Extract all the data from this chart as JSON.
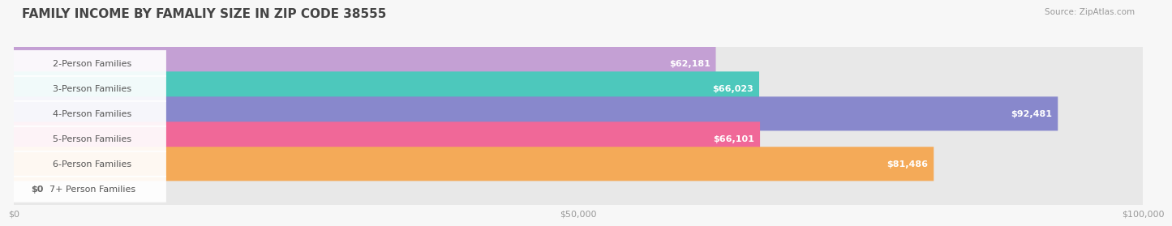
{
  "title": "FAMILY INCOME BY FAMALIY SIZE IN ZIP CODE 38555",
  "source": "Source: ZipAtlas.com",
  "categories": [
    "2-Person Families",
    "3-Person Families",
    "4-Person Families",
    "5-Person Families",
    "6-Person Families",
    "7+ Person Families"
  ],
  "values": [
    62181,
    66023,
    92481,
    66101,
    81486,
    0
  ],
  "bar_colors": [
    "#c4a0d4",
    "#4dc8bc",
    "#8888cc",
    "#f06898",
    "#f4aa58",
    "#f4b8b8"
  ],
  "value_labels": [
    "$62,181",
    "$66,023",
    "$92,481",
    "$66,101",
    "$81,486",
    "$0"
  ],
  "xlim": [
    0,
    100000
  ],
  "xticks": [
    0,
    50000,
    100000
  ],
  "xtick_labels": [
    "$0",
    "$50,000",
    "$100,000"
  ],
  "background_color": "#f7f7f7",
  "bar_bg_color": "#e8e8e8",
  "title_fontsize": 11,
  "label_fontsize": 8,
  "value_fontsize": 8,
  "source_fontsize": 7.5
}
